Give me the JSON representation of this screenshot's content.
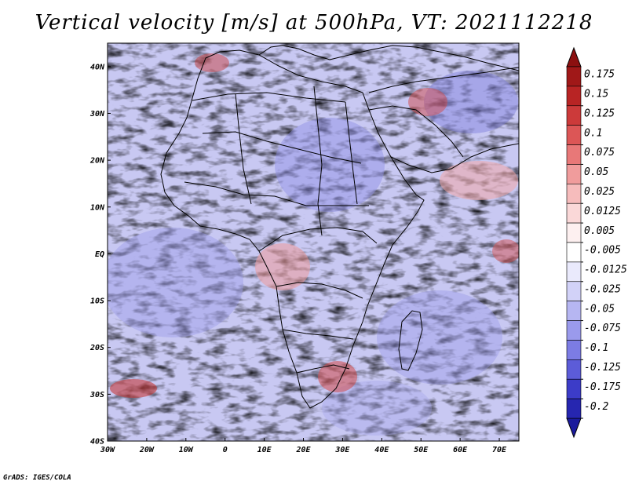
{
  "title": "Vertical velocity [m/s] at 500hPa, VT: 2021112218",
  "credit": "GrADS: IGES/COLA",
  "map": {
    "lon_range": [
      -30,
      75
    ],
    "lat_range": [
      -40,
      45
    ],
    "lat_ticks": [
      {
        "value": 40,
        "label": "40N"
      },
      {
        "value": 30,
        "label": "30N"
      },
      {
        "value": 20,
        "label": "20N"
      },
      {
        "value": 10,
        "label": "10N"
      },
      {
        "value": 0,
        "label": "EQ"
      },
      {
        "value": -10,
        "label": "10S"
      },
      {
        "value": -20,
        "label": "20S"
      },
      {
        "value": -30,
        "label": "30S"
      },
      {
        "value": -40,
        "label": "40S"
      }
    ],
    "lon_ticks": [
      {
        "value": -30,
        "label": "30W"
      },
      {
        "value": -20,
        "label": "20W"
      },
      {
        "value": -10,
        "label": "10W"
      },
      {
        "value": 0,
        "label": "0"
      },
      {
        "value": 10,
        "label": "10E"
      },
      {
        "value": 20,
        "label": "20E"
      },
      {
        "value": 30,
        "label": "30E"
      },
      {
        "value": 40,
        "label": "40E"
      },
      {
        "value": 50,
        "label": "50E"
      },
      {
        "value": 60,
        "label": "60E"
      },
      {
        "value": 70,
        "label": "70E"
      }
    ]
  },
  "colorbar": {
    "levels": [
      {
        "label": "0.175",
        "color": "#a01818"
      },
      {
        "label": "0.15",
        "color": "#b82424"
      },
      {
        "label": "0.125",
        "color": "#cc3a3a"
      },
      {
        "label": "0.1",
        "color": "#dc5656"
      },
      {
        "label": "0.075",
        "color": "#e87878"
      },
      {
        "label": "0.05",
        "color": "#f09c9c"
      },
      {
        "label": "0.025",
        "color": "#f6bcbc"
      },
      {
        "label": "0.0125",
        "color": "#fad8d8"
      },
      {
        "label": "0.005",
        "color": "#fdf0f0"
      },
      {
        "label": "-0.005",
        "color": "#ffffff"
      },
      {
        "label": "-0.0125",
        "color": "#eaeafc"
      },
      {
        "label": "-0.025",
        "color": "#d2d2f8"
      },
      {
        "label": "-0.05",
        "color": "#b6b6f2"
      },
      {
        "label": "-0.075",
        "color": "#9a9aec"
      },
      {
        "label": "-0.1",
        "color": "#7c7ce4"
      },
      {
        "label": "-0.125",
        "color": "#5c5cd8"
      },
      {
        "label": "-0.175",
        "color": "#3c3cc8"
      },
      {
        "label": "-0.2",
        "color": "#2626b0"
      }
    ],
    "top_color": "#8c1010",
    "bottom_color": "#1a1a9c"
  }
}
